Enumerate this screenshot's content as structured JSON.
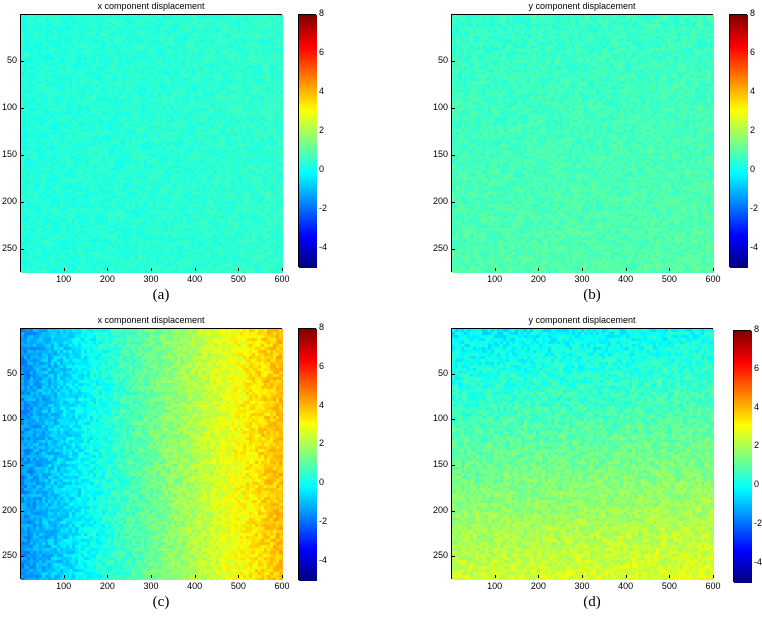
{
  "chart_data": [
    {
      "type": "heatmap",
      "title": "x component displacement",
      "caption": "(a)",
      "x_ticks": [
        100,
        200,
        300,
        400,
        500,
        600
      ],
      "y_ticks": [
        50,
        100,
        150,
        200,
        250
      ],
      "xlim": [
        0,
        600
      ],
      "ylim": [
        0,
        275
      ],
      "y_reversed": true,
      "colorbar": {
        "colormap": "jet",
        "range": [
          -5,
          8
        ],
        "ticks": [
          8,
          6,
          4,
          2,
          0,
          -2,
          -4
        ]
      },
      "field": {
        "base": 0.3,
        "gradient_x": 0.2,
        "noise": 0.5
      }
    },
    {
      "type": "heatmap",
      "title": "y component displacement",
      "caption": "(b)",
      "x_ticks": [
        100,
        200,
        300,
        400,
        500,
        600
      ],
      "y_ticks": [
        50,
        100,
        150,
        200,
        250
      ],
      "xlim": [
        0,
        600
      ],
      "ylim": [
        0,
        275
      ],
      "y_reversed": true,
      "colorbar": {
        "colormap": "jet",
        "range": [
          -5,
          8
        ],
        "ticks": [
          8,
          6,
          4,
          2,
          0,
          -2,
          -4
        ]
      },
      "field": {
        "base": 0.5,
        "gradient_x": 0.1,
        "gradient_y": 0.4,
        "noise": 0.6
      }
    },
    {
      "type": "heatmap",
      "title": "x component displacement",
      "caption": "(c)",
      "x_ticks": [
        100,
        200,
        300,
        400,
        500,
        600
      ],
      "y_ticks": [
        50,
        100,
        150,
        200,
        250
      ],
      "xlim": [
        0,
        600
      ],
      "ylim": [
        0,
        275
      ],
      "y_reversed": true,
      "colorbar": {
        "colormap": "jet",
        "range": [
          -5,
          8
        ],
        "ticks": [
          8,
          6,
          4,
          2,
          0,
          -2,
          -4
        ]
      },
      "field": {
        "base": -1.5,
        "gradient_x": 5.5,
        "noise": 0.9
      }
    },
    {
      "type": "heatmap",
      "title": "y component displacement",
      "caption": "(d)",
      "x_ticks": [
        100,
        200,
        300,
        400,
        500,
        600
      ],
      "y_ticks": [
        50,
        100,
        150,
        200,
        250
      ],
      "xlim": [
        0,
        600
      ],
      "ylim": [
        0,
        275
      ],
      "y_reversed": true,
      "colorbar": {
        "colormap": "jet",
        "range": [
          -5,
          8
        ],
        "ticks": [
          8,
          6,
          4,
          2,
          0,
          -2,
          -4
        ]
      },
      "field": {
        "base": -0.3,
        "gradient_x": 0.3,
        "gradient_y": 2.8,
        "noise": 0.9
      }
    }
  ]
}
